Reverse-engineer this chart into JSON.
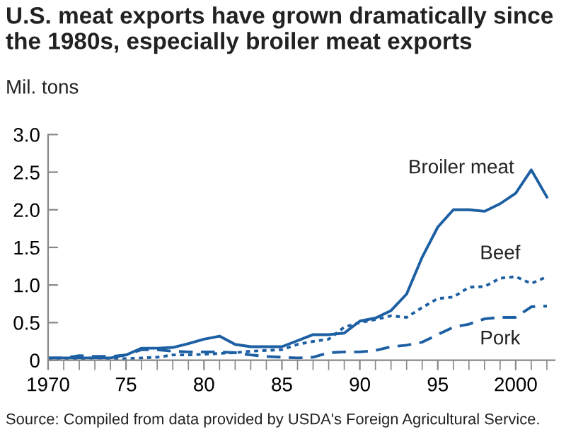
{
  "chart_data": {
    "type": "line",
    "title": "U.S. meat exports have grown dramatically since\nthe 1980s, especially broiler meat exports",
    "ylabel": "Mil. tons",
    "x": [
      1970,
      1971,
      1972,
      1973,
      1974,
      1975,
      1976,
      1977,
      1978,
      1979,
      1980,
      1981,
      1982,
      1983,
      1984,
      1985,
      1986,
      1987,
      1988,
      1989,
      1990,
      1991,
      1992,
      1993,
      1994,
      1995,
      1996,
      1997,
      1998,
      1999,
      2000,
      2001,
      2002
    ],
    "series": [
      {
        "name": "Broiler meat",
        "color": "#1d5fa3",
        "line_style": "solid",
        "values": [
          0.03,
          0.03,
          0.03,
          0.03,
          0.03,
          0.07,
          0.16,
          0.16,
          0.17,
          0.22,
          0.28,
          0.32,
          0.21,
          0.18,
          0.18,
          0.18,
          0.26,
          0.34,
          0.34,
          0.36,
          0.52,
          0.56,
          0.66,
          0.88,
          1.37,
          1.77,
          2.0,
          2.0,
          1.98,
          2.08,
          2.22,
          2.53,
          2.17
        ]
      },
      {
        "name": "Beef",
        "color": "#1d5fa3",
        "line_style": "dotted",
        "values": [
          0.02,
          0.02,
          0.02,
          0.03,
          0.02,
          0.02,
          0.03,
          0.04,
          0.07,
          0.07,
          0.08,
          0.09,
          0.1,
          0.12,
          0.13,
          0.14,
          0.21,
          0.25,
          0.28,
          0.44,
          0.5,
          0.54,
          0.59,
          0.57,
          0.7,
          0.82,
          0.84,
          0.97,
          0.98,
          1.09,
          1.11,
          1.02,
          1.11
        ]
      },
      {
        "name": "Pork",
        "color": "#1d5fa3",
        "line_style": "dashed",
        "values": [
          0.03,
          0.03,
          0.06,
          0.05,
          0.05,
          0.07,
          0.14,
          0.14,
          0.12,
          0.11,
          0.11,
          0.11,
          0.1,
          0.07,
          0.05,
          0.04,
          0.03,
          0.04,
          0.1,
          0.11,
          0.11,
          0.13,
          0.18,
          0.2,
          0.24,
          0.34,
          0.44,
          0.48,
          0.55,
          0.57,
          0.57,
          0.71,
          0.72
        ]
      }
    ],
    "xlim": [
      1970,
      2002.5
    ],
    "xticks": [
      {
        "value": 1970,
        "label": "1970"
      },
      {
        "value": 1975,
        "label": "75"
      },
      {
        "value": 1980,
        "label": "80"
      },
      {
        "value": 1985,
        "label": "85"
      },
      {
        "value": 1990,
        "label": "90"
      },
      {
        "value": 1995,
        "label": "95"
      },
      {
        "value": 2000,
        "label": "2000"
      }
    ],
    "ylim": [
      0,
      3.0
    ],
    "yticks": [
      0,
      {
        "value": 0.5,
        "label": "0.5"
      },
      {
        "value": 1.0,
        "label": "1.0"
      },
      {
        "value": 1.5,
        "label": "1.5"
      },
      {
        "value": 2.0,
        "label": "2.0"
      },
      {
        "value": 2.5,
        "label": "2.5"
      },
      {
        "value": 3.0,
        "label": "3.0"
      }
    ],
    "grid": false,
    "legend": false,
    "marker": "none",
    "annotations": [
      "Source: Compiled from data provided by USDA's Foreign Agricultural Service."
    ]
  }
}
